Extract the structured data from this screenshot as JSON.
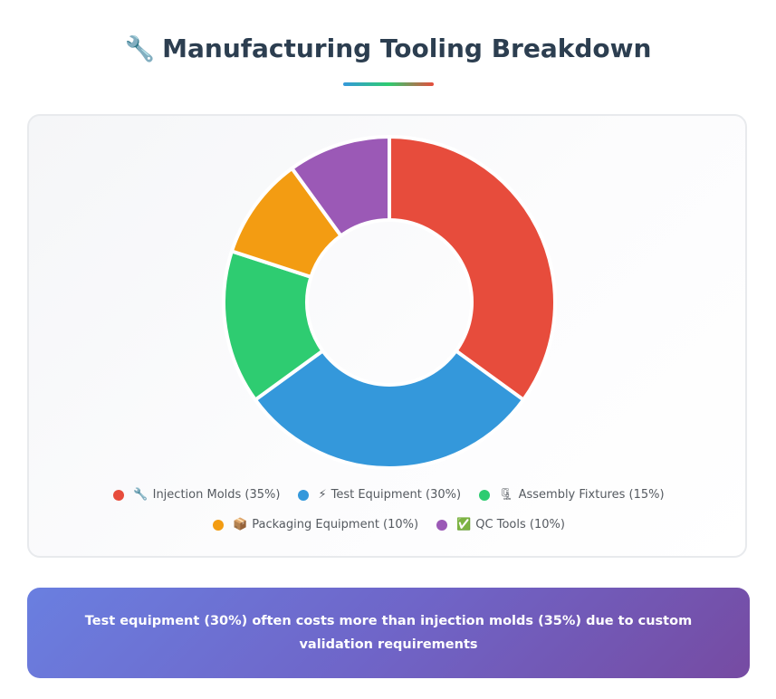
{
  "page": {
    "title_icon": "🔧",
    "title": "Manufacturing Tooling Breakdown",
    "insight": "Test equipment (30%) often costs more than injection molds (35%) due to custom validation requirements"
  },
  "chart_data": {
    "type": "pie",
    "variant": "donut",
    "categories": [
      "Injection Molds",
      "Test Equipment",
      "Assembly Fixtures",
      "Packaging Equipment",
      "QC Tools"
    ],
    "values": [
      35,
      30,
      15,
      10,
      10
    ],
    "unit": "%",
    "colors": [
      "#e74c3c",
      "#3498db",
      "#2ecc71",
      "#f39c12",
      "#9b59b6"
    ],
    "legend_placement": "bottom",
    "legend": [
      {
        "icon": "🔧",
        "label": "Injection Molds (35%)"
      },
      {
        "icon": "⚡",
        "label": "Test Equipment (30%)"
      },
      {
        "icon": "🗜",
        "label": "Assembly Fixtures (15%)"
      },
      {
        "icon": "📦",
        "label": "Packaging Equipment (10%)"
      },
      {
        "icon": "✅",
        "label": "QC Tools (10%)"
      }
    ]
  }
}
